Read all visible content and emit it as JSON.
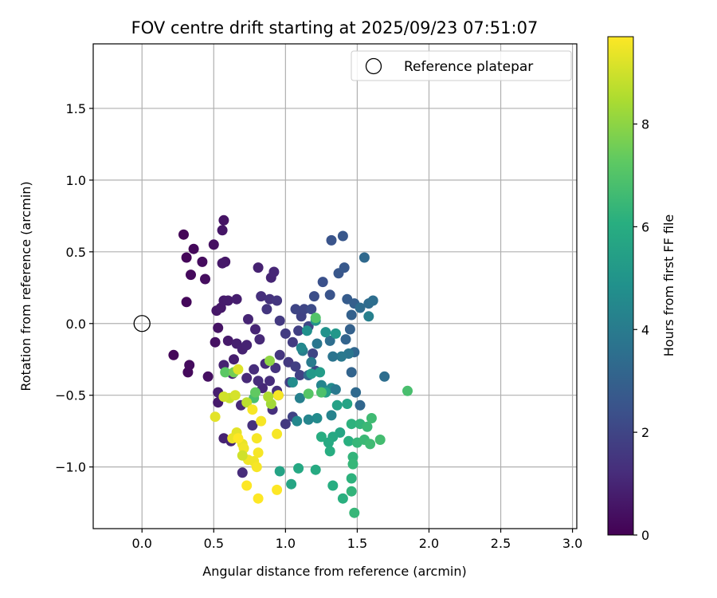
{
  "chart_data": {
    "type": "scatter",
    "title": "FOV centre drift starting at 2025/09/23 07:51:07",
    "xlabel": "Angular distance from reference (arcmin)",
    "ylabel": "Rotation from reference (arcmin)",
    "xlim": [
      -0.34,
      3.03
    ],
    "ylim": [
      -1.43,
      1.95
    ],
    "x_ticks": [
      0.0,
      0.5,
      1.0,
      1.5,
      2.0,
      2.5,
      3.0
    ],
    "x_tick_labels": [
      "0.0",
      "0.5",
      "1.0",
      "1.5",
      "2.0",
      "2.5",
      "3.0"
    ],
    "y_ticks": [
      -1.0,
      -0.5,
      0.0,
      0.5,
      1.0,
      1.5
    ],
    "y_tick_labels": [
      "−1.0",
      "−0.5",
      "0.0",
      "0.5",
      "1.0",
      "1.5"
    ],
    "grid": true,
    "colormap": "viridis",
    "colorbar": {
      "label": "Hours from first FF file",
      "range": [
        0,
        9.7
      ],
      "ticks": [
        0,
        2,
        4,
        6,
        8
      ],
      "tick_labels": [
        "0",
        "2",
        "4",
        "6",
        "8"
      ]
    },
    "legend": {
      "placement": "top-right",
      "entries": [
        {
          "label": "Reference platepar",
          "marker": "hollow-circle"
        }
      ]
    },
    "reference_point": {
      "x": 0.0,
      "y": 0.0
    },
    "points": [
      [
        0.29,
        0.62,
        0.1
      ],
      [
        0.31,
        0.46,
        0.15
      ],
      [
        0.36,
        0.52,
        0.2
      ],
      [
        0.34,
        0.34,
        0.25
      ],
      [
        0.42,
        0.43,
        0.3
      ],
      [
        0.44,
        0.31,
        0.35
      ],
      [
        0.5,
        0.55,
        0.4
      ],
      [
        0.57,
        0.72,
        0.5
      ],
      [
        0.56,
        0.65,
        0.55
      ],
      [
        0.58,
        0.43,
        0.6
      ],
      [
        0.56,
        0.42,
        0.65
      ],
      [
        0.31,
        0.15,
        0.2
      ],
      [
        0.22,
        -0.22,
        0.15
      ],
      [
        0.32,
        -0.34,
        0.25
      ],
      [
        0.33,
        -0.29,
        0.3
      ],
      [
        0.46,
        -0.37,
        0.4
      ],
      [
        0.51,
        -0.13,
        0.45
      ],
      [
        0.53,
        -0.03,
        0.5
      ],
      [
        0.52,
        0.09,
        0.6
      ],
      [
        0.55,
        0.11,
        0.65
      ],
      [
        0.57,
        0.16,
        0.7
      ],
      [
        0.6,
        0.16,
        0.75
      ],
      [
        0.66,
        0.17,
        0.8
      ],
      [
        0.81,
        0.39,
        0.9
      ],
      [
        0.9,
        0.32,
        1.0
      ],
      [
        0.92,
        0.36,
        1.05
      ],
      [
        0.6,
        -0.12,
        0.7
      ],
      [
        0.64,
        -0.25,
        0.8
      ],
      [
        0.66,
        -0.14,
        0.85
      ],
      [
        0.7,
        -0.18,
        0.9
      ],
      [
        0.73,
        -0.15,
        0.95
      ],
      [
        0.79,
        -0.04,
        1.0
      ],
      [
        0.74,
        0.03,
        1.0
      ],
      [
        0.82,
        -0.11,
        1.1
      ],
      [
        0.86,
        -0.28,
        1.15
      ],
      [
        0.78,
        -0.32,
        1.2
      ],
      [
        0.84,
        -0.45,
        1.1
      ],
      [
        0.89,
        -0.4,
        1.2
      ],
      [
        0.94,
        -0.47,
        1.3
      ],
      [
        0.83,
        0.19,
        1.3
      ],
      [
        0.89,
        0.17,
        1.4
      ],
      [
        0.94,
        0.16,
        1.5
      ],
      [
        0.87,
        0.1,
        1.5
      ],
      [
        0.96,
        0.02,
        1.6
      ],
      [
        1.0,
        -0.07,
        1.7
      ],
      [
        0.96,
        -0.22,
        1.5
      ],
      [
        0.93,
        -0.31,
        1.4
      ],
      [
        1.02,
        -0.27,
        1.6
      ],
      [
        1.05,
        -0.13,
        1.7
      ],
      [
        1.09,
        -0.05,
        1.8
      ],
      [
        1.11,
        0.05,
        1.9
      ],
      [
        1.07,
        0.1,
        2.0
      ],
      [
        1.13,
        0.1,
        2.0
      ],
      [
        1.16,
        -0.02,
        2.1
      ],
      [
        1.19,
        -0.21,
        2.0
      ],
      [
        1.21,
        -0.33,
        2.1
      ],
      [
        1.1,
        -0.36,
        1.9
      ],
      [
        1.07,
        -0.3,
        1.8
      ],
      [
        1.03,
        -0.41,
        1.9
      ],
      [
        1.05,
        -0.65,
        1.9
      ],
      [
        1.0,
        -0.7,
        1.6
      ],
      [
        0.95,
        -0.5,
        1.7
      ],
      [
        0.91,
        -0.6,
        1.3
      ],
      [
        0.81,
        -0.4,
        1.2
      ],
      [
        0.73,
        -0.38,
        1.1
      ],
      [
        0.63,
        -0.35,
        1.0
      ],
      [
        0.57,
        -0.29,
        0.9
      ],
      [
        0.53,
        -0.48,
        0.8
      ],
      [
        0.53,
        -0.55,
        0.7
      ],
      [
        0.57,
        -0.8,
        0.9
      ],
      [
        0.62,
        -0.82,
        1.0
      ],
      [
        0.7,
        -1.04,
        1.2
      ],
      [
        0.77,
        -0.71,
        1.3
      ],
      [
        0.69,
        -0.57,
        1.1
      ],
      [
        1.18,
        0.1,
        2.2
      ],
      [
        1.2,
        0.19,
        2.3
      ],
      [
        1.26,
        0.29,
        2.4
      ],
      [
        1.31,
        0.2,
        2.5
      ],
      [
        1.32,
        0.58,
        2.5
      ],
      [
        1.4,
        0.61,
        2.6
      ],
      [
        1.37,
        0.35,
        2.6
      ],
      [
        1.41,
        0.39,
        2.7
      ],
      [
        1.43,
        0.17,
        2.8
      ],
      [
        1.48,
        0.14,
        2.9
      ],
      [
        1.46,
        0.06,
        3.0
      ],
      [
        1.45,
        -0.04,
        3.0
      ],
      [
        1.42,
        -0.11,
        3.1
      ],
      [
        1.48,
        -0.2,
        3.2
      ],
      [
        1.46,
        -0.34,
        3.1
      ],
      [
        1.52,
        -0.57,
        3.2
      ],
      [
        1.49,
        -0.48,
        3.3
      ],
      [
        1.55,
        0.46,
        3.3
      ],
      [
        1.58,
        0.14,
        3.4
      ],
      [
        1.61,
        0.16,
        3.5
      ],
      [
        1.69,
        -0.37,
        3.5
      ],
      [
        1.58,
        0.05,
        4.2
      ],
      [
        1.52,
        0.11,
        3.4
      ],
      [
        1.44,
        -0.21,
        3.8
      ],
      [
        1.39,
        -0.23,
        3.9
      ],
      [
        1.33,
        -0.23,
        3.7
      ],
      [
        1.31,
        -0.12,
        3.5
      ],
      [
        1.22,
        -0.14,
        3.8
      ],
      [
        1.18,
        -0.27,
        4.0
      ],
      [
        1.12,
        -0.19,
        4.1
      ],
      [
        1.16,
        -0.36,
        3.3
      ],
      [
        1.26,
        -0.46,
        3.7
      ],
      [
        1.25,
        -0.43,
        4.4
      ],
      [
        1.32,
        -0.45,
        4.6
      ],
      [
        1.35,
        -0.46,
        3.9
      ],
      [
        1.32,
        -0.64,
        4.3
      ],
      [
        1.22,
        -0.66,
        4.6
      ],
      [
        1.16,
        -0.67,
        4.4
      ],
      [
        1.1,
        -0.52,
        4.2
      ],
      [
        1.08,
        -0.68,
        4.5
      ],
      [
        1.05,
        -0.41,
        4.7
      ],
      [
        1.11,
        -0.17,
        4.5
      ],
      [
        1.15,
        -0.05,
        4.8
      ],
      [
        1.21,
        0.02,
        5.0
      ],
      [
        1.28,
        -0.06,
        4.9
      ],
      [
        1.35,
        -0.07,
        5.1
      ],
      [
        1.18,
        -0.35,
        5.2
      ],
      [
        1.24,
        -0.34,
        5.3
      ],
      [
        1.28,
        -0.48,
        5.4
      ],
      [
        1.36,
        -0.57,
        5.5
      ],
      [
        1.43,
        -0.56,
        5.6
      ],
      [
        1.38,
        -0.76,
        5.7
      ],
      [
        1.33,
        -0.79,
        5.8
      ],
      [
        1.3,
        -0.83,
        5.9
      ],
      [
        1.25,
        -0.79,
        6.0
      ],
      [
        1.31,
        -0.89,
        6.0
      ],
      [
        1.44,
        -0.82,
        6.1
      ],
      [
        1.46,
        -0.7,
        6.2
      ],
      [
        1.52,
        -0.7,
        6.3
      ],
      [
        1.47,
        -0.93,
        6.3
      ],
      [
        1.47,
        -0.98,
        6.4
      ],
      [
        1.5,
        -0.83,
        6.4
      ],
      [
        1.55,
        -0.81,
        6.5
      ],
      [
        1.57,
        -0.72,
        6.5
      ],
      [
        1.6,
        -0.66,
        6.6
      ],
      [
        1.59,
        -0.84,
        6.6
      ],
      [
        1.66,
        -0.81,
        6.7
      ],
      [
        1.46,
        -1.08,
        6.2
      ],
      [
        1.4,
        -1.22,
        6.1
      ],
      [
        1.46,
        -1.17,
        6.3
      ],
      [
        1.48,
        -1.32,
        6.4
      ],
      [
        1.33,
        -1.13,
        6.0
      ],
      [
        1.21,
        -1.02,
        5.9
      ],
      [
        1.09,
        -1.01,
        5.8
      ],
      [
        1.04,
        -1.12,
        5.7
      ],
      [
        0.96,
        -1.03,
        5.6
      ],
      [
        1.85,
        -0.47,
        6.8
      ],
      [
        1.21,
        0.04,
        7.0
      ],
      [
        1.25,
        -0.48,
        6.9
      ],
      [
        1.16,
        -0.49,
        7.1
      ],
      [
        0.78,
        -0.52,
        6.8
      ],
      [
        0.58,
        -0.34,
        7.2
      ],
      [
        0.64,
        -0.34,
        7.6
      ],
      [
        0.79,
        -0.48,
        7.3
      ],
      [
        0.89,
        -0.26,
        8.0
      ],
      [
        0.9,
        -0.56,
        8.3
      ],
      [
        0.88,
        -0.51,
        8.5
      ],
      [
        0.73,
        -0.55,
        8.7
      ],
      [
        0.61,
        -0.52,
        8.9
      ],
      [
        0.57,
        -0.51,
        9.0
      ],
      [
        0.65,
        -0.5,
        9.1
      ],
      [
        0.67,
        -0.32,
        9.2
      ],
      [
        0.51,
        -0.65,
        9.3
      ],
      [
        0.66,
        -0.76,
        9.3
      ],
      [
        0.63,
        -0.8,
        9.4
      ],
      [
        0.7,
        -0.84,
        9.4
      ],
      [
        0.71,
        -0.87,
        9.5
      ],
      [
        0.74,
        -0.95,
        9.5
      ],
      [
        0.7,
        -0.92,
        9.0
      ],
      [
        0.78,
        -0.96,
        9.5
      ],
      [
        0.8,
        -1.0,
        9.6
      ],
      [
        0.81,
        -0.9,
        9.6
      ],
      [
        0.83,
        -0.68,
        9.6
      ],
      [
        0.77,
        -0.6,
        9.6
      ],
      [
        0.8,
        -0.8,
        9.6
      ],
      [
        0.94,
        -0.77,
        9.6
      ],
      [
        0.95,
        -0.5,
        9.6
      ],
      [
        0.94,
        -1.16,
        9.7
      ],
      [
        0.81,
        -1.22,
        9.7
      ],
      [
        0.73,
        -1.13,
        9.7
      ],
      [
        0.67,
        -0.8,
        9.7
      ]
    ]
  }
}
